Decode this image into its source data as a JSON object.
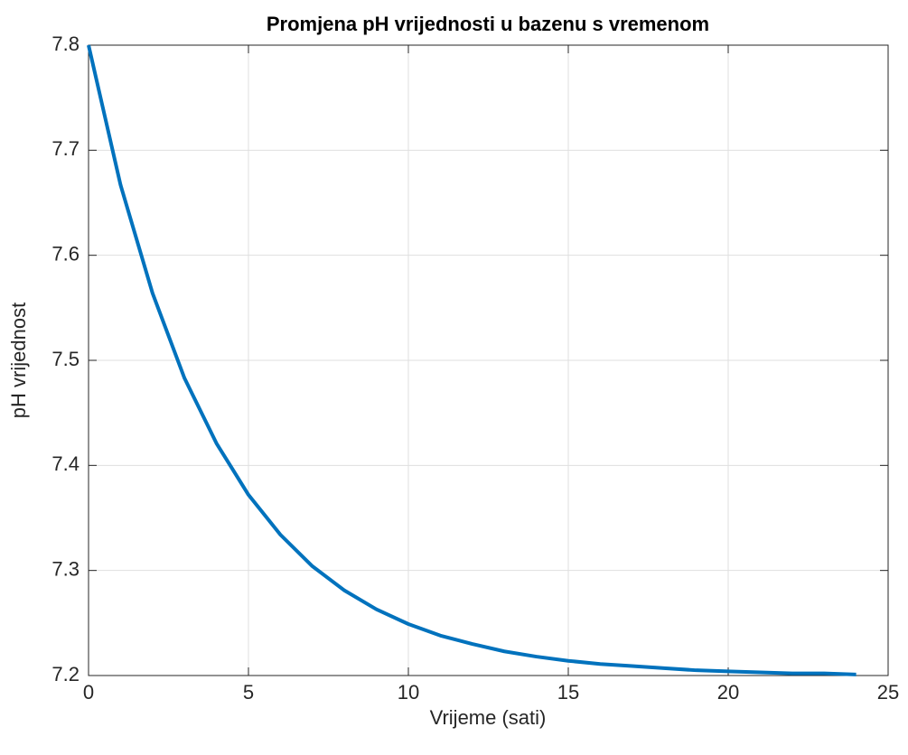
{
  "chart_data": {
    "type": "line",
    "title": "Promjena pH vrijednosti u bazenu s vremenom",
    "x_label": "Vrijeme (sati)",
    "y_label": "pH vrijednost",
    "x": [
      0,
      1,
      2,
      3,
      4,
      5,
      6,
      7,
      8,
      9,
      10,
      11,
      12,
      13,
      14,
      15,
      16,
      17,
      18,
      19,
      20,
      21,
      22,
      23,
      24
    ],
    "series": [
      {
        "name": "pH",
        "color": "#0072bd",
        "values": [
          7.8,
          7.667,
          7.564,
          7.483,
          7.421,
          7.372,
          7.334,
          7.304,
          7.281,
          7.263,
          7.249,
          7.238,
          7.23,
          7.223,
          7.218,
          7.214,
          7.211,
          7.209,
          7.207,
          7.205,
          7.204,
          7.203,
          7.202,
          7.202,
          7.201
        ]
      }
    ],
    "xlim": [
      0,
      25
    ],
    "xticks": [
      0,
      5,
      10,
      15,
      20,
      25
    ],
    "ylim": [
      7.2,
      7.8
    ],
    "yticks": [
      7.2,
      7.3,
      7.4,
      7.5,
      7.6,
      7.7,
      7.8
    ],
    "grid": true
  }
}
